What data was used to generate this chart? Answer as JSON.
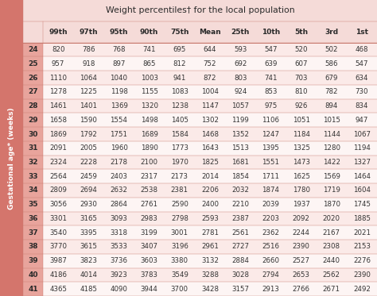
{
  "title": "Weight percentiles† for the local population",
  "col_labels": [
    "99th",
    "97th",
    "95th",
    "90th",
    "75th",
    "Mean",
    "25th",
    "10th",
    "5th",
    "3rd",
    "1st"
  ],
  "row_labels": [
    "24",
    "25",
    "26",
    "27",
    "28",
    "29",
    "30",
    "31",
    "32",
    "33",
    "34",
    "35",
    "36",
    "37",
    "38",
    "39",
    "40",
    "41"
  ],
  "ylabel": "Gestational age* (weeks)",
  "table_data": [
    [
      820,
      786,
      768,
      741,
      695,
      644,
      593,
      547,
      520,
      502,
      468
    ],
    [
      957,
      918,
      897,
      865,
      812,
      752,
      692,
      639,
      607,
      586,
      547
    ],
    [
      1110,
      1064,
      1040,
      1003,
      941,
      872,
      803,
      741,
      703,
      679,
      634
    ],
    [
      1278,
      1225,
      1198,
      1155,
      1083,
      1004,
      924,
      853,
      810,
      782,
      730
    ],
    [
      1461,
      1401,
      1369,
      1320,
      1238,
      1147,
      1057,
      975,
      926,
      894,
      834
    ],
    [
      1658,
      1590,
      1554,
      1498,
      1405,
      1302,
      1199,
      1106,
      1051,
      1015,
      947
    ],
    [
      1869,
      1792,
      1751,
      1689,
      1584,
      1468,
      1352,
      1247,
      1184,
      1144,
      1067
    ],
    [
      2091,
      2005,
      1960,
      1890,
      1773,
      1643,
      1513,
      1395,
      1325,
      1280,
      1194
    ],
    [
      2324,
      2228,
      2178,
      2100,
      1970,
      1825,
      1681,
      1551,
      1473,
      1422,
      1327
    ],
    [
      2564,
      2459,
      2403,
      2317,
      2173,
      2014,
      1854,
      1711,
      1625,
      1569,
      1464
    ],
    [
      2809,
      2694,
      2632,
      2538,
      2381,
      2206,
      2032,
      1874,
      1780,
      1719,
      1604
    ],
    [
      3056,
      2930,
      2864,
      2761,
      2590,
      2400,
      2210,
      2039,
      1937,
      1870,
      1745
    ],
    [
      3301,
      3165,
      3093,
      2983,
      2798,
      2593,
      2387,
      2203,
      2092,
      2020,
      1885
    ],
    [
      3540,
      3395,
      3318,
      3199,
      3001,
      2781,
      2561,
      2362,
      2244,
      2167,
      2021
    ],
    [
      3770,
      3615,
      3533,
      3407,
      3196,
      2961,
      2727,
      2516,
      2390,
      2308,
      2153
    ],
    [
      3987,
      3823,
      3736,
      3603,
      3380,
      3132,
      2884,
      2660,
      2527,
      2440,
      2276
    ],
    [
      4186,
      4014,
      3923,
      3783,
      3549,
      3288,
      3028,
      2794,
      2653,
      2562,
      2390
    ],
    [
      4365,
      4185,
      4090,
      3944,
      3700,
      3428,
      3157,
      2913,
      2766,
      2671,
      2492
    ]
  ],
  "title_bg": "#f5dbd8",
  "header_bg": "#f5dbd8",
  "row_bg_even": "#fbeae8",
  "row_bg_odd": "#fdf5f4",
  "row_label_bg": "#e8a49c",
  "header_text_color": "#2a2a2a",
  "cell_text_color": "#333333",
  "row_label_text_color": "#2a2a2a",
  "ylabel_bg": "#d4756c",
  "border_color": "#c8796e",
  "title_fontsize": 7.8,
  "header_fontsize": 6.5,
  "cell_fontsize": 6.2,
  "row_label_fontsize": 6.5
}
